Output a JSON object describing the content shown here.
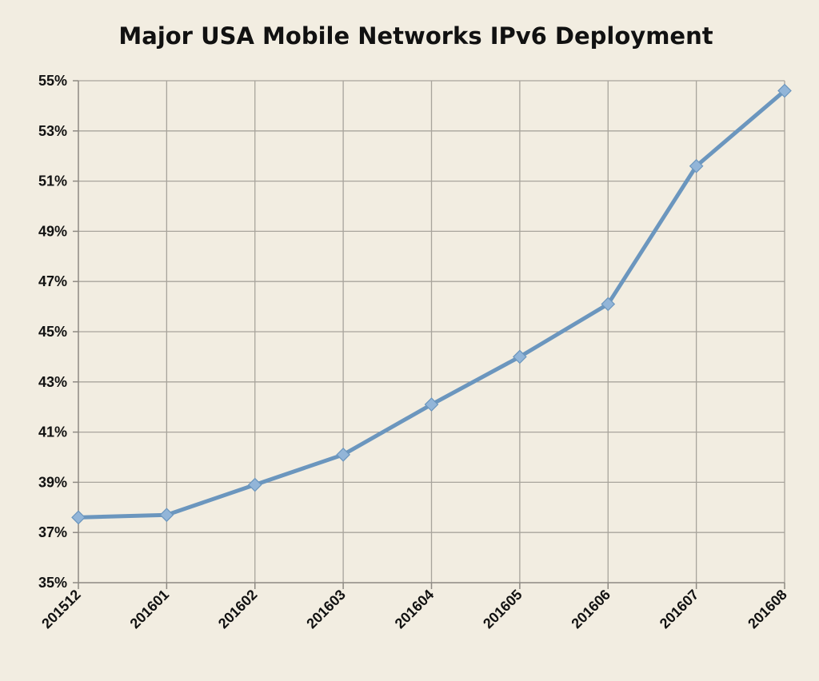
{
  "chart_data": {
    "type": "line",
    "title": "Major USA Mobile Networks IPv6 Deployment",
    "xlabel": "",
    "ylabel": "",
    "categories": [
      "201512",
      "201601",
      "201602",
      "201603",
      "201604",
      "201605",
      "201606",
      "201607",
      "201608"
    ],
    "series": [
      {
        "values": [
          37.6,
          37.7,
          38.9,
          40.1,
          42.1,
          44.0,
          46.1,
          51.6,
          54.6
        ]
      }
    ],
    "ylim": [
      35,
      55
    ],
    "yticks": [
      35,
      37,
      39,
      41,
      43,
      45,
      47,
      49,
      51,
      53,
      55
    ],
    "ytick_labels": [
      "35%",
      "37%",
      "39%",
      "41%",
      "43%",
      "45%",
      "47%",
      "49%",
      "51%",
      "53%",
      "55%"
    ],
    "grid": true,
    "legend": "none",
    "colors": {
      "background": "#f2ede1",
      "line": "#6b96be",
      "marker_fill": "#92b5d8",
      "grid": "#a8a49c"
    }
  }
}
